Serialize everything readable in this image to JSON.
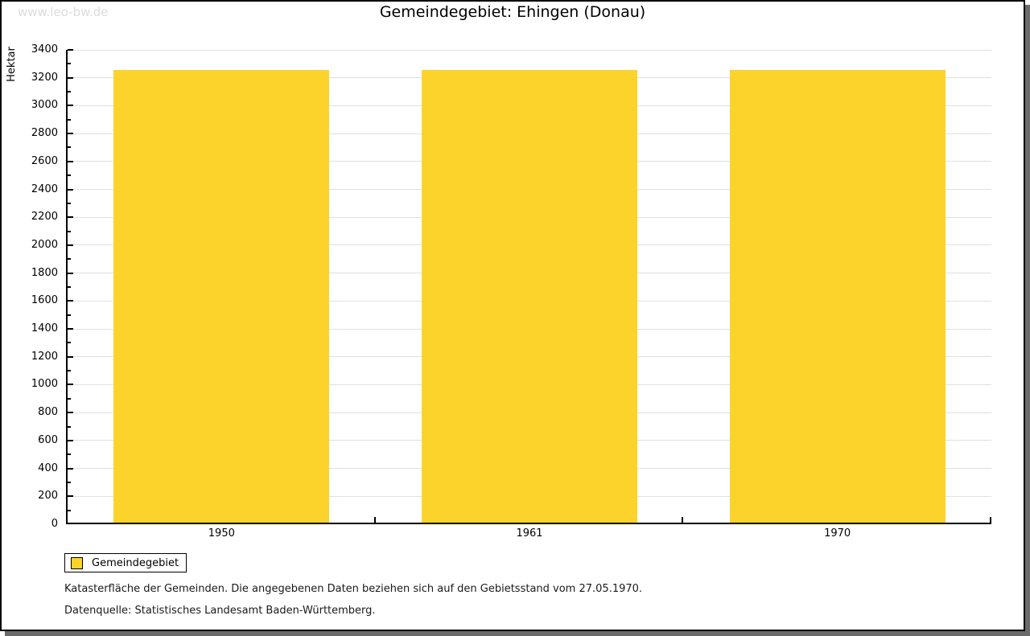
{
  "watermark": "www.leo-bw.de",
  "title": "Gemeindegebiet: Ehingen (Donau)",
  "legend": {
    "label": "Gemeindegebiet"
  },
  "footnotes": [
    "Katasterfläche der Gemeinden. Die angegebenen Daten beziehen sich auf den Gebietsstand vom 27.05.1970.",
    "Datenquelle: Statistisches Landesamt Baden-Württemberg."
  ],
  "colors": {
    "bar": "#FCD32B",
    "gridline": "#E0E0E0",
    "axis": "#000000",
    "watermark": "#DCDCDC",
    "frame_shadow": "#6B6B6B"
  },
  "chart_data": {
    "type": "bar",
    "title": "Gemeindegebiet: Ehingen (Donau)",
    "categories": [
      "1950",
      "1961",
      "1970"
    ],
    "series": [
      {
        "name": "Gemeindegebiet",
        "values": [
          3255,
          3255,
          3255
        ]
      }
    ],
    "xlabel": "",
    "ylabel": "Hektar",
    "ylim": [
      0,
      3400
    ],
    "ytick_step": 200,
    "yminor_step": 100,
    "grid": true,
    "legend_position": "bottom-left",
    "unit": "Hektar"
  }
}
